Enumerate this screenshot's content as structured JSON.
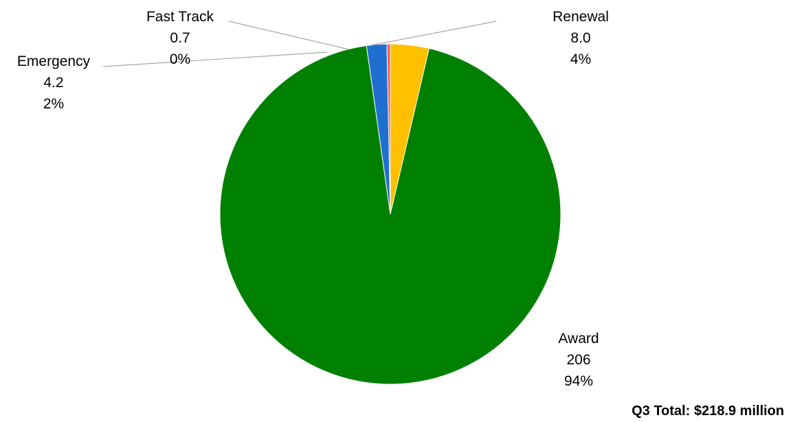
{
  "chart_data": {
    "type": "pie",
    "title": "",
    "slices": [
      {
        "label": "Renewal",
        "value": 8.0,
        "value_text": "8.0",
        "percent_text": "4%",
        "color": "#ffc000"
      },
      {
        "label": "Award",
        "value": 206,
        "value_text": "206",
        "percent_text": "94%",
        "color": "#008000"
      },
      {
        "label": "Emergency",
        "value": 4.2,
        "value_text": "4.2",
        "percent_text": "2%",
        "color": "#1f6fd1"
      },
      {
        "label": "Fast Track",
        "value": 0.7,
        "value_text": "0.7",
        "percent_text": "0%",
        "color": "#ff5b5b"
      }
    ],
    "leader_line_color": "#a6a6a6",
    "total_text": "Q3 Total: $218.9 million"
  }
}
